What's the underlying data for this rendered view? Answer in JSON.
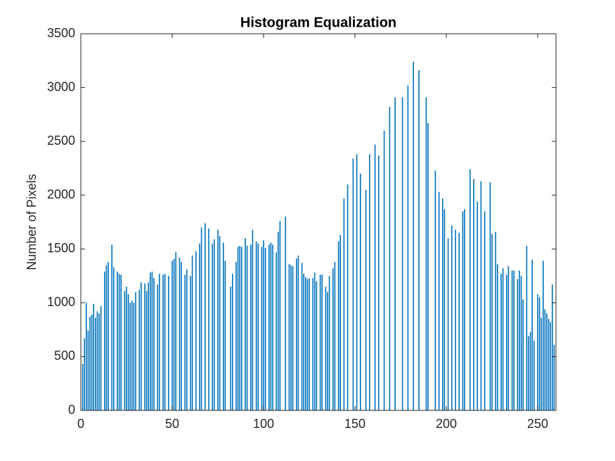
{
  "chart_data": {
    "type": "bar",
    "title": "Histogram Equalization",
    "ylabel": "Number of Pixels",
    "color": "#0072bd",
    "x": [
      1,
      2,
      3,
      4,
      5,
      6,
      7,
      8,
      9,
      10,
      11,
      13,
      14,
      15,
      17,
      18,
      20,
      21,
      22,
      24,
      25,
      26,
      27,
      28,
      29,
      30,
      32,
      33,
      35,
      36,
      37,
      38,
      39,
      40,
      42,
      43,
      45,
      46,
      48,
      50,
      51,
      52,
      54,
      55,
      57,
      58,
      60,
      61,
      63,
      65,
      66,
      68,
      70,
      72,
      73,
      75,
      76,
      78,
      79,
      82,
      83,
      85,
      86,
      87,
      88,
      90,
      91,
      93,
      94,
      96,
      97,
      99,
      100,
      101,
      103,
      104,
      105,
      107,
      108,
      109,
      112,
      114,
      115,
      116,
      118,
      119,
      121,
      122,
      123,
      124,
      125,
      127,
      128,
      129,
      131,
      132,
      134,
      135,
      136,
      138,
      139,
      141,
      142,
      144,
      146,
      149,
      151,
      153,
      156,
      158,
      161,
      163,
      166,
      169,
      172,
      176,
      179,
      182,
      185,
      189,
      190,
      194,
      196,
      198,
      199,
      201,
      203,
      205,
      207,
      209,
      210,
      213,
      215,
      217,
      219,
      221,
      224,
      225,
      227,
      228,
      230,
      231,
      233,
      234,
      236,
      237,
      239,
      240,
      241,
      242,
      244,
      245,
      246,
      247,
      248,
      250,
      251,
      252,
      253,
      254,
      255,
      256,
      257,
      258,
      259
    ],
    "values": [
      430,
      670,
      1000,
      740,
      870,
      890,
      990,
      860,
      920,
      900,
      970,
      1290,
      1350,
      1380,
      1540,
      1330,
      1290,
      1270,
      1260,
      1110,
      1150,
      1080,
      1000,
      1020,
      1000,
      1100,
      1120,
      1190,
      1180,
      1110,
      1190,
      1280,
      1290,
      1230,
      1170,
      1270,
      1260,
      1270,
      1250,
      1390,
      1410,
      1470,
      1420,
      1380,
      1260,
      1310,
      1250,
      1440,
      1480,
      1550,
      1700,
      1740,
      1690,
      1550,
      1590,
      1680,
      1620,
      1560,
      1390,
      1150,
      1270,
      1380,
      1520,
      1530,
      1520,
      1600,
      1530,
      1540,
      1680,
      1570,
      1550,
      1520,
      1580,
      1510,
      1540,
      1560,
      1540,
      1470,
      1660,
      1760,
      1800,
      1360,
      1350,
      1340,
      1410,
      1440,
      1370,
      1270,
      1240,
      1220,
      1230,
      1230,
      1280,
      1200,
      1260,
      1260,
      1150,
      1100,
      1250,
      1320,
      1380,
      1570,
      1630,
      1970,
      2100,
      2340,
      2380,
      2200,
      2050,
      2380,
      2470,
      2370,
      2600,
      2820,
      2910,
      2910,
      3020,
      3240,
      3160,
      2910,
      2670,
      2230,
      2030,
      1970,
      1870,
      1600,
      1720,
      1680,
      1650,
      1850,
      1870,
      2240,
      2150,
      1940,
      2130,
      1850,
      2120,
      1640,
      1660,
      1360,
      1270,
      1320,
      1260,
      1340,
      1300,
      1300,
      1220,
      1300,
      1250,
      1030,
      1530,
      690,
      730,
      1400,
      650,
      1080,
      1050,
      860,
      1390,
      940,
      900,
      850,
      820,
      1170,
      610
    ],
    "xlim": [
      0,
      260
    ],
    "xticks": [
      0,
      50,
      100,
      150,
      200,
      250
    ],
    "ylim": [
      0,
      3500
    ],
    "yticks": [
      0,
      500,
      1000,
      1500,
      2000,
      2500,
      3000,
      3500
    ]
  }
}
